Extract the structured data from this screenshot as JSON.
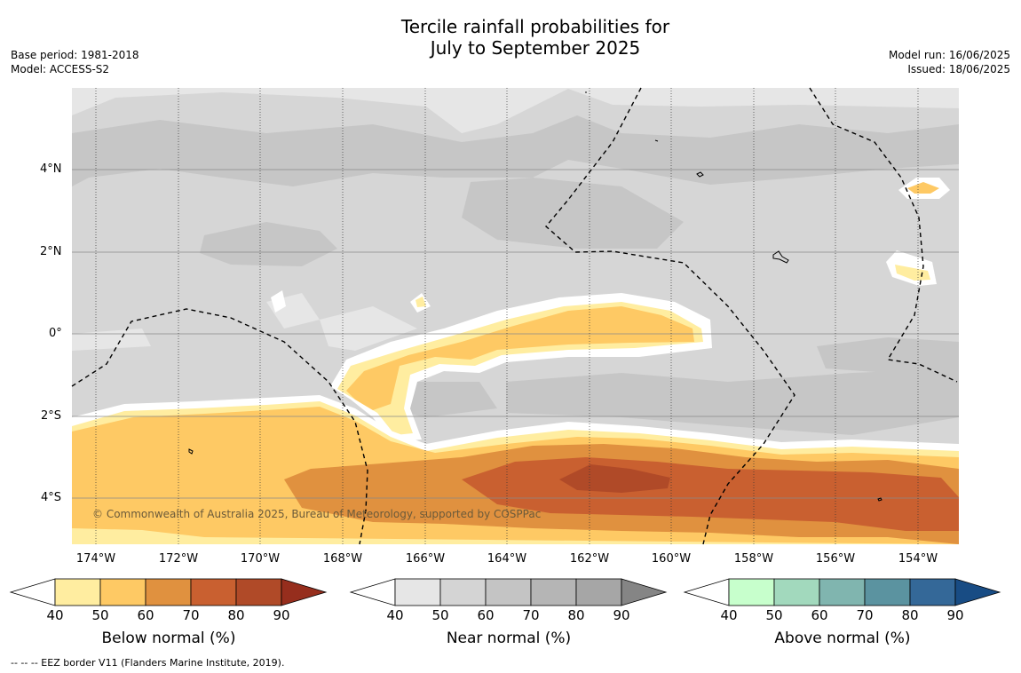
{
  "title_line1": "Tercile rainfall probabilities for",
  "title_line2": "July to September 2025",
  "base_period": "Base period: 1981-2018",
  "model": "Model: ACCESS-S2",
  "model_run": "Model run: 16/06/2025",
  "issued": "Issued: 18/06/2025",
  "copyright": "© Commonwealth of Australia 2025, Bureau of Meteorology, supported by COSPPac",
  "footnote": "--  --  -- EEZ border V11 (Flanders Marine Institute, 2019).",
  "map": {
    "lat_ticks": [
      "4°N",
      "2°N",
      "0°",
      "2°S",
      "4°S"
    ],
    "lon_ticks": [
      "174°W",
      "172°W",
      "170°W",
      "168°W",
      "166°W",
      "164°W",
      "162°W",
      "160°W",
      "158°W",
      "156°W",
      "154°W"
    ]
  },
  "colorbars": [
    {
      "label": "Below normal (%)",
      "ticks": [
        "40",
        "50",
        "60",
        "70",
        "80",
        "90"
      ],
      "colors": [
        "#ffffff",
        "#ffeda0",
        "#fec964",
        "#e0913f",
        "#c96030",
        "#b04a28",
        "#962e1d"
      ]
    },
    {
      "label": "Near normal (%)",
      "ticks": [
        "40",
        "50",
        "60",
        "70",
        "80",
        "90"
      ],
      "colors": [
        "#ffffff",
        "#e6e6e6",
        "#d4d4d4",
        "#c4c4c4",
        "#b5b5b5",
        "#a6a6a6",
        "#858585"
      ]
    },
    {
      "label": "Above normal (%)",
      "ticks": [
        "40",
        "50",
        "60",
        "70",
        "80",
        "90"
      ],
      "colors": [
        "#ffffff",
        "#c7ffcc",
        "#a2d9bd",
        "#80b5af",
        "#5b93a0",
        "#346898",
        "#184c84"
      ]
    }
  ]
}
